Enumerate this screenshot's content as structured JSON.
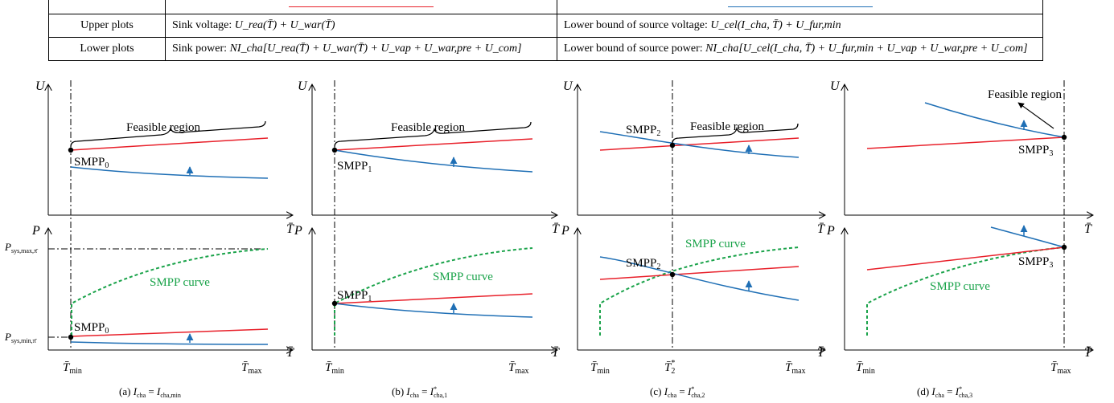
{
  "colors": {
    "sink": "#e8202a",
    "source": "#1f6fb5",
    "smpp": "#1aa34a",
    "axis": "#000000"
  },
  "table": {
    "rows": [
      {
        "name": "Upper plots",
        "sink_prefix": "Sink voltage:",
        "sink_expr": "U_rea(T̄) + U_war(T̄)",
        "source_prefix": "Lower bound of source voltage:",
        "source_expr": "U_cel(I_cha, T̄) + U_fur,min"
      },
      {
        "name": "Lower plots",
        "sink_prefix": "Sink power:",
        "sink_expr": "NI_cha[U_rea(T̄) + U_war(T̄) + U_vap + U_war,pre + U_com]",
        "source_prefix": "Lower bound of source power:",
        "source_expr": "NI_cha[U_cel(I_cha, T̄) + U_fur,min + U_vap + U_war,pre + U_com]"
      }
    ]
  },
  "axes": {
    "upper_y": "U",
    "lower_y": "P",
    "x": "T̄"
  },
  "labels": {
    "feasible_region": "Feasible region",
    "smpp_curve": "SMPP curve",
    "smpp0": "SMPP0",
    "smpp1": "SMPP1",
    "smpp2": "SMPP2",
    "smpp3": "SMPP3",
    "p_max": "P_sys,max,π̄",
    "p_min": "P_sys,min,π̄",
    "t_min": "T̄_min",
    "t_max": "T̄_max",
    "t2_star": "T̄*_2"
  },
  "captions": [
    "(a) I_cha = I_cha,min",
    "(b) I_cha = I*_cha,1",
    "(c) I_cha = I*_cha,2",
    "(d) I_cha = I*_cha,3"
  ]
}
